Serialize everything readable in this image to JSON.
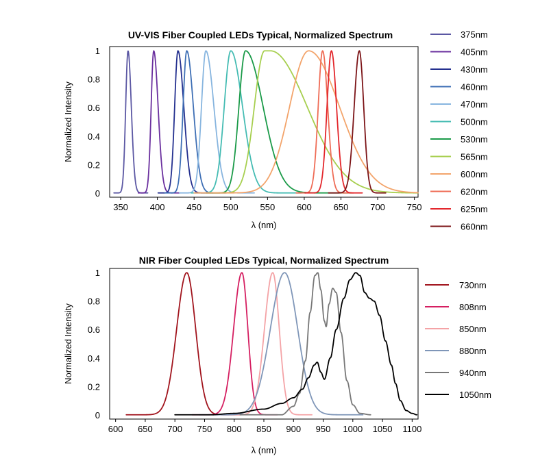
{
  "chart_data": [
    {
      "type": "line",
      "title": "UV-VIS Fiber Coupled LEDs Typical, Normalized Spectrum",
      "xlabel": "λ (nm)",
      "ylabel": "Normalized Intensity",
      "xlim": [
        335,
        755
      ],
      "ylim": [
        -0.03,
        1.03
      ],
      "xticks": [
        350,
        400,
        450,
        500,
        550,
        600,
        650,
        700,
        750
      ],
      "yticks": [
        0,
        0.2,
        0.4,
        0.6,
        0.8,
        1
      ],
      "ytick_labels": [
        "0",
        "0.2",
        "0.4",
        "0.6",
        "0.8",
        "1"
      ],
      "grid": false,
      "legend_position": "right",
      "series": [
        {
          "name": "375nm",
          "color": "#5b57a3",
          "peak": 360,
          "sigma_left": 3.2,
          "sigma_right": 4.5,
          "flat": 0
        },
        {
          "name": "405nm",
          "color": "#6a2f9e",
          "peak": 395,
          "sigma_left": 3.5,
          "sigma_right": 6,
          "flat": 0
        },
        {
          "name": "430nm",
          "color": "#24308f",
          "peak": 428,
          "sigma_left": 4.5,
          "sigma_right": 8,
          "flat": 0
        },
        {
          "name": "460nm",
          "color": "#3e6fb5",
          "peak": 440,
          "sigma_left": 5,
          "sigma_right": 9,
          "flat": 0
        },
        {
          "name": "470nm",
          "color": "#87b5df",
          "peak": 466,
          "sigma_left": 6,
          "sigma_right": 11,
          "flat": 0
        },
        {
          "name": "500nm",
          "color": "#45bcb3",
          "peak": 500,
          "sigma_left": 9,
          "sigma_right": 16,
          "flat": 0
        },
        {
          "name": "530nm",
          "color": "#1a9a48",
          "peak": 520,
          "sigma_left": 9,
          "sigma_right": 24,
          "flat": 0
        },
        {
          "name": "565nm",
          "color": "#a7cf4f",
          "peak": 550,
          "sigma_left": 14,
          "sigma_right": 50,
          "flat": 8
        },
        {
          "name": "600nm",
          "color": "#f3a46b",
          "peak": 606,
          "sigma_left": 26,
          "sigma_right": 42,
          "flat": 0
        },
        {
          "name": "620nm",
          "color": "#ef6c56",
          "peak": 625,
          "sigma_left": 6,
          "sigma_right": 7,
          "flat": 0
        },
        {
          "name": "625nm",
          "color": "#e3262b",
          "peak": 637,
          "sigma_left": 6,
          "sigma_right": 7,
          "flat": 0
        },
        {
          "name": "660nm",
          "color": "#7c1417",
          "peak": 675,
          "sigma_left": 7,
          "sigma_right": 6,
          "flat": 0
        }
      ]
    },
    {
      "type": "line",
      "title": "NIR Fiber Coupled LEDs Typical, Normalized Spectrum",
      "xlabel": "λ (nm)",
      "ylabel": "Normalized Intensity",
      "xlim": [
        590,
        1110
      ],
      "ylim": [
        -0.03,
        1.03
      ],
      "xticks": [
        600,
        650,
        700,
        750,
        800,
        850,
        900,
        950,
        1000,
        1050,
        1100
      ],
      "yticks": [
        0,
        0.2,
        0.4,
        0.6,
        0.8,
        1
      ],
      "ytick_labels": [
        "0",
        "0.2",
        "0.4",
        "0.6",
        "0.8",
        "1"
      ],
      "grid": false,
      "legend_position": "right",
      "series": [
        {
          "name": "730nm",
          "color": "#a1141d",
          "peak": 720,
          "sigma_left": 17,
          "sigma_right": 15,
          "flat": 0
        },
        {
          "name": "808nm",
          "color": "#d51f61",
          "peak": 813,
          "sigma_left": 14,
          "sigma_right": 10,
          "flat": 0
        },
        {
          "name": "850nm",
          "color": "#f4a3a6",
          "peak": 865,
          "sigma_left": 14,
          "sigma_right": 11,
          "flat": 0
        },
        {
          "name": "880nm",
          "color": "#7f96b8",
          "peak": 885,
          "sigma_left": 24,
          "sigma_right": 22,
          "flat": 0
        },
        {
          "name": "940nm",
          "color": "#777777",
          "points": [
            [
              880,
              0
            ],
            [
              900,
              0.06
            ],
            [
              910,
              0.15
            ],
            [
              920,
              0.38
            ],
            [
              928,
              0.72
            ],
            [
              936,
              0.98
            ],
            [
              941,
              1.0
            ],
            [
              946,
              0.88
            ],
            [
              952,
              0.66
            ],
            [
              955,
              0.62
            ],
            [
              960,
              0.78
            ],
            [
              966,
              0.89
            ],
            [
              972,
              0.86
            ],
            [
              980,
              0.58
            ],
            [
              990,
              0.24
            ],
            [
              1000,
              0.07
            ],
            [
              1012,
              0.01
            ],
            [
              1030,
              0
            ]
          ],
          "tail_left": 70
        },
        {
          "name": "1050nm",
          "color": "#000000",
          "points": [
            [
              700,
              0
            ],
            [
              760,
              0
            ],
            [
              800,
              0.01
            ],
            [
              850,
              0.04
            ],
            [
              880,
              0.08
            ],
            [
              900,
              0.12
            ],
            [
              915,
              0.18
            ],
            [
              925,
              0.26
            ],
            [
              935,
              0.35
            ],
            [
              940,
              0.37
            ],
            [
              946,
              0.3
            ],
            [
              952,
              0.25
            ],
            [
              962,
              0.4
            ],
            [
              972,
              0.6
            ],
            [
              985,
              0.82
            ],
            [
              995,
              0.95
            ],
            [
              1005,
              1.0
            ],
            [
              1012,
              0.98
            ],
            [
              1020,
              0.86
            ],
            [
              1028,
              0.82
            ],
            [
              1036,
              0.8
            ],
            [
              1045,
              0.7
            ],
            [
              1055,
              0.52
            ],
            [
              1065,
              0.35
            ],
            [
              1072,
              0.22
            ],
            [
              1080,
              0.1
            ],
            [
              1090,
              0.03
            ],
            [
              1100,
              0.01
            ],
            [
              1108,
              0
            ]
          ],
          "tail_left": 0
        }
      ]
    }
  ]
}
